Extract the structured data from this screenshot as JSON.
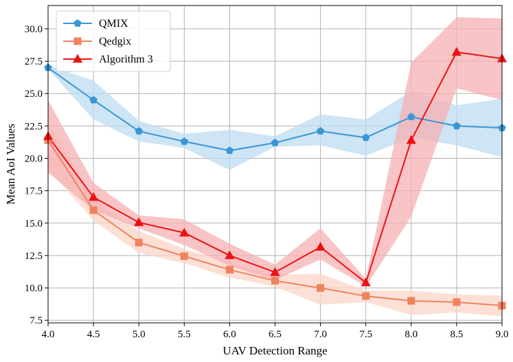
{
  "chart_data": {
    "type": "line",
    "title": "",
    "xlabel": "UAV Detection Range",
    "ylabel": "Mean AoI Values",
    "x": [
      4.0,
      4.5,
      5.0,
      5.5,
      6.0,
      6.5,
      7.0,
      7.5,
      8.0,
      8.5,
      9.0
    ],
    "x_tick_labels": [
      "4.0",
      "4.5",
      "5.0",
      "5.5",
      "6.0",
      "6.5",
      "7.0",
      "7.5",
      "8.0",
      "8.5",
      "9.0"
    ],
    "y_ticks": [
      7.5,
      10.0,
      12.5,
      15.0,
      17.5,
      20.0,
      22.5,
      25.0,
      27.5,
      30.0
    ],
    "y_tick_labels": [
      "7.5",
      "10.0",
      "12.5",
      "15.0",
      "17.5",
      "20.0",
      "22.5",
      "25.0",
      "27.5",
      "30.0"
    ],
    "xlim": [
      4.0,
      9.0
    ],
    "ylim": [
      7.3,
      31.8
    ],
    "grid": true,
    "legend_position": "top-left",
    "series": [
      {
        "name": "QMIX",
        "color": "#3a96d4",
        "band_color": "#bcdcf2",
        "marker": "pentagon",
        "values": [
          27.0,
          24.5,
          22.1,
          21.3,
          20.6,
          21.2,
          22.1,
          21.6,
          23.2,
          22.5,
          22.35
        ],
        "lower": [
          26.9,
          23.0,
          21.3,
          20.8,
          19.1,
          20.9,
          21.0,
          20.2,
          21.6,
          21.0,
          20.1
        ],
        "upper": [
          27.2,
          26.0,
          22.9,
          21.9,
          22.2,
          21.7,
          23.4,
          23.0,
          25.2,
          24.1,
          24.6
        ]
      },
      {
        "name": "Qedgix",
        "color": "#f0825e",
        "band_color": "#fbd6c8",
        "marker": "square",
        "values": [
          21.4,
          16.0,
          13.5,
          12.45,
          11.4,
          10.55,
          9.99,
          9.37,
          9.0,
          8.9,
          8.63
        ],
        "lower": [
          19.2,
          15.2,
          12.7,
          11.9,
          10.8,
          10.1,
          8.7,
          8.9,
          7.9,
          8.1,
          7.8
        ],
        "upper": [
          22.8,
          16.9,
          14.4,
          13.0,
          12.0,
          11.0,
          11.1,
          9.8,
          9.8,
          9.5,
          9.4
        ]
      },
      {
        "name": "Algorithm 3",
        "color": "#ee1111",
        "band_color": "#f6b0b3",
        "marker": "triangle",
        "values": [
          21.7,
          17.0,
          15.05,
          14.25,
          12.5,
          11.2,
          13.15,
          10.4,
          21.4,
          28.2,
          27.7
        ],
        "lower": [
          18.9,
          16.0,
          14.6,
          13.3,
          11.7,
          10.6,
          12.2,
          10.1,
          15.5,
          25.4,
          24.5
        ],
        "upper": [
          24.5,
          18.1,
          15.6,
          15.3,
          13.4,
          11.8,
          14.6,
          10.7,
          27.4,
          30.9,
          30.8
        ]
      }
    ]
  }
}
